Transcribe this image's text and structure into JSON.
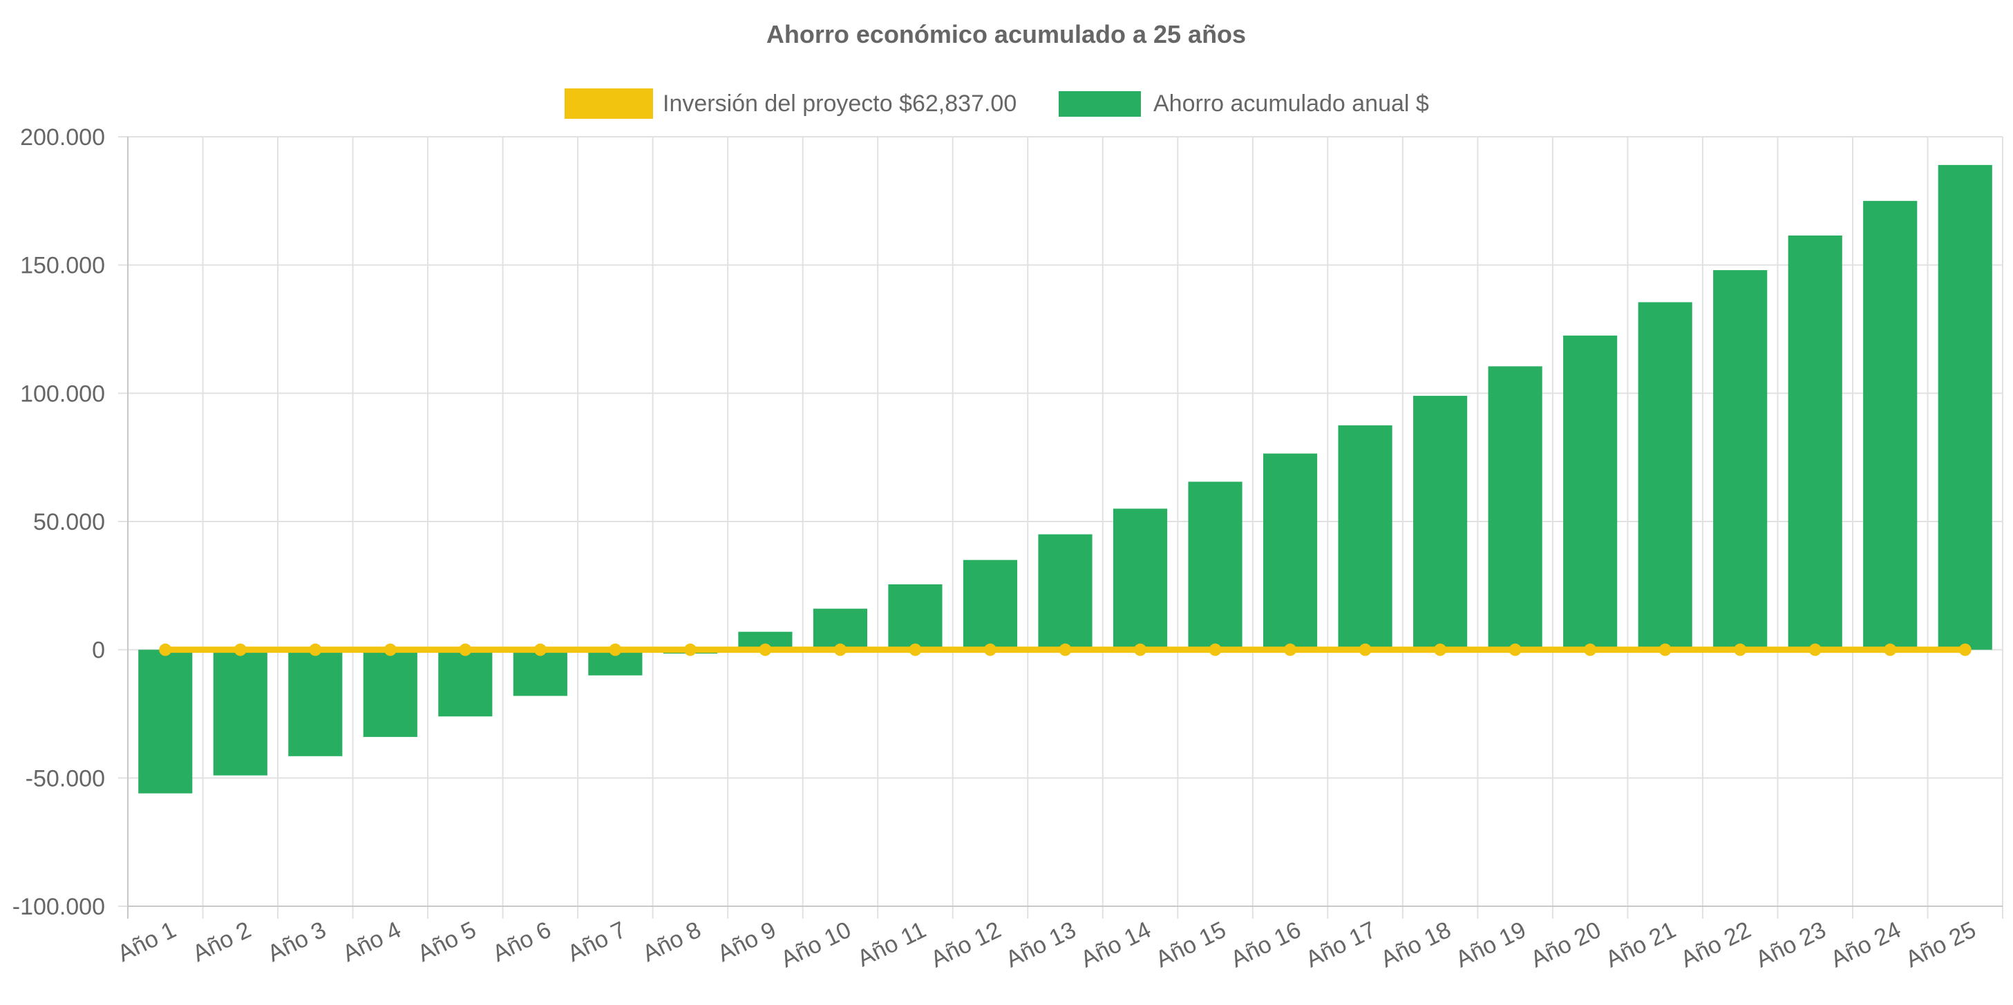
{
  "chart_data": {
    "type": "bar",
    "title": "Ahorro económico acumulado a 25 años",
    "xlabel": "",
    "ylabel": "",
    "categories": [
      "Año 1",
      "Año 2",
      "Año 3",
      "Año 4",
      "Año 5",
      "Año 6",
      "Año 7",
      "Año 8",
      "Año 9",
      "Año 10",
      "Año 11",
      "Año 12",
      "Año 13",
      "Año 14",
      "Año 15",
      "Año 16",
      "Año 17",
      "Año 18",
      "Año 19",
      "Año 20",
      "Año 21",
      "Año 22",
      "Año 23",
      "Año 24",
      "Año 25"
    ],
    "ylim": [
      -100000,
      200000
    ],
    "yticks": [
      200000,
      150000,
      100000,
      50000,
      0,
      -50000,
      -100000
    ],
    "ytick_labels": [
      "200.000",
      "150.000",
      "100.000",
      "50.000",
      "0",
      "-50.000",
      "-100.000"
    ],
    "grid": true,
    "legend_position": "top",
    "series": [
      {
        "name": "Inversión del proyecto $62,837.00",
        "type": "line",
        "color": "#f2c40f",
        "values": [
          0,
          0,
          0,
          0,
          0,
          0,
          0,
          0,
          0,
          0,
          0,
          0,
          0,
          0,
          0,
          0,
          0,
          0,
          0,
          0,
          0,
          0,
          0,
          0,
          0
        ]
      },
      {
        "name": "Ahorro acumulado anual $",
        "type": "bar",
        "color": "#27ae60",
        "values": [
          -56000,
          -49000,
          -41500,
          -34000,
          -26000,
          -18000,
          -10000,
          -1500,
          7000,
          16000,
          25500,
          35000,
          45000,
          55000,
          65500,
          76500,
          87500,
          99000,
          110500,
          122500,
          135500,
          148000,
          161500,
          175000,
          189000
        ]
      }
    ]
  }
}
